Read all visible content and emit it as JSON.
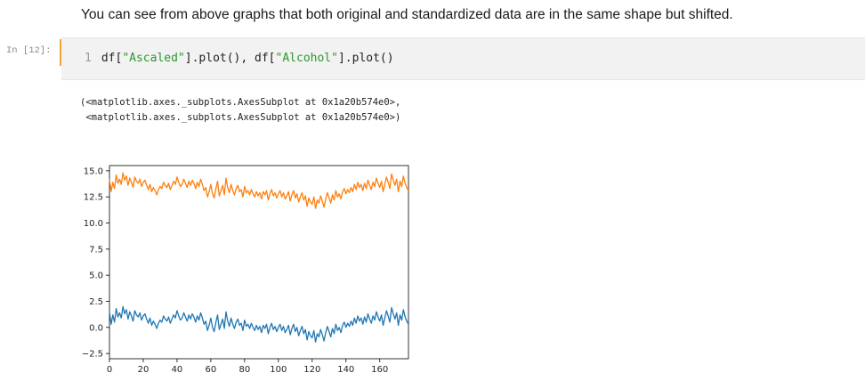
{
  "markdown": {
    "text": "You can see from above graphs that both original and standardized data are in the same shape but shifted."
  },
  "cell": {
    "prompt": "In [12]:",
    "line_number": "1",
    "code_parts": [
      "df[",
      "\"Ascaled\"",
      "].plot(), df[",
      "\"Alcohol\"",
      "].plot()"
    ]
  },
  "output": {
    "lines": [
      "(<matplotlib.axes._subplots.AxesSubplot at 0x1a20b574e0>,",
      " <matplotlib.axes._subplots.AxesSubplot at 0x1a20b574e0>)"
    ]
  },
  "colors": {
    "series_ascaled": "#1f77b4",
    "series_alcohol": "#ff7f0e",
    "cell_bar": "#f2a33a"
  },
  "chart_data": {
    "type": "line",
    "title": "",
    "xlabel": "",
    "ylabel": "",
    "xlim": [
      0,
      177
    ],
    "ylim": [
      -3.0,
      15.5
    ],
    "xticks": [
      0,
      20,
      40,
      60,
      80,
      100,
      120,
      140,
      160
    ],
    "yticks": [
      -2.5,
      0.0,
      2.5,
      5.0,
      7.5,
      10.0,
      12.5,
      15.0
    ],
    "ytick_labels": [
      "−2.5",
      "0.0",
      "2.5",
      "5.0",
      "7.5",
      "10.0",
      "12.5",
      "15.0"
    ],
    "grid": false,
    "legend": "none",
    "series": [
      {
        "values": [
          1.5,
          0.3,
          1.2,
          0.5,
          1.8,
          1.0,
          1.4,
          0.9,
          2.0,
          1.3,
          1.7,
          0.8,
          1.5,
          1.1,
          0.6,
          1.6,
          1.2,
          1.0,
          1.4,
          0.7,
          1.1,
          1.3,
          0.8,
          0.4,
          0.9,
          0.2,
          0.6,
          0.3,
          -0.1,
          0.4,
          0.7,
          0.5,
          1.1,
          0.8,
          0.6,
          1.0,
          0.4,
          0.8,
          1.2,
          0.9,
          1.6,
          1.1,
          0.7,
          0.9,
          1.4,
          1.0,
          0.6,
          1.2,
          0.8,
          1.3,
          1.0,
          0.5,
          1.1,
          0.7,
          1.4,
          0.9,
          0.3,
          0.6,
          -0.3,
          0.2,
          0.9,
          0.0,
          -0.4,
          0.5,
          1.2,
          -0.2,
          0.3,
          0.8,
          -0.1,
          1.5,
          0.6,
          0.1,
          0.9,
          0.3,
          -0.1,
          0.5,
          0.8,
          0.2,
          0.4,
          -0.3,
          0.7,
          0.1,
          0.3,
          -0.1,
          0.4,
          0.0,
          -0.3,
          0.2,
          -0.2,
          0.1,
          -0.5,
          0.2,
          -0.1,
          0.3,
          -0.6,
          0.0,
          0.4,
          -0.2,
          0.1,
          -0.4,
          0.0,
          0.3,
          -0.3,
          0.1,
          -0.5,
          -0.2,
          0.2,
          -0.7,
          -0.1,
          0.3,
          -0.4,
          0.0,
          -0.8,
          -0.3,
          0.1,
          -0.6,
          -0.2,
          -1.2,
          -0.4,
          -0.8,
          -1.0,
          -0.3,
          -1.4,
          -0.6,
          -0.9,
          -0.2,
          -0.7,
          -1.3,
          -0.5,
          0.1,
          -0.4,
          -0.9,
          -0.1,
          -0.6,
          0.3,
          -0.3,
          0.0,
          -0.5,
          0.2,
          0.5,
          0.0,
          0.4,
          0.1,
          0.6,
          0.2,
          0.9,
          0.4,
          1.1,
          0.6,
          0.9,
          0.3,
          1.0,
          0.5,
          1.3,
          0.8,
          0.4,
          1.1,
          0.7,
          1.5,
          1.0,
          0.6,
          1.2,
          0.2,
          0.9,
          1.6,
          1.1,
          0.5,
          1.9,
          1.3,
          0.8,
          1.4,
          0.2,
          1.2,
          0.7,
          1.7,
          1.0,
          0.6,
          0.3
        ]
      },
      {
        "values": [
          14.2,
          13.0,
          13.9,
          13.3,
          14.6,
          13.8,
          14.2,
          13.7,
          14.8,
          14.1,
          14.5,
          13.6,
          14.3,
          13.9,
          13.4,
          14.4,
          14.0,
          13.8,
          14.2,
          13.5,
          13.9,
          14.1,
          13.6,
          13.2,
          13.7,
          13.0,
          13.4,
          13.1,
          12.7,
          13.2,
          13.5,
          13.3,
          13.9,
          13.6,
          13.4,
          13.8,
          13.2,
          13.6,
          14.0,
          13.7,
          14.4,
          13.9,
          13.5,
          13.7,
          14.2,
          13.8,
          13.4,
          14.0,
          13.6,
          14.1,
          13.8,
          13.3,
          13.9,
          13.5,
          14.2,
          13.7,
          13.1,
          13.4,
          12.5,
          13.0,
          13.7,
          12.8,
          12.4,
          13.3,
          14.0,
          12.6,
          13.1,
          13.6,
          12.7,
          14.3,
          13.4,
          12.9,
          13.7,
          13.1,
          12.7,
          13.3,
          13.6,
          13.0,
          13.2,
          12.5,
          13.5,
          12.9,
          13.1,
          12.7,
          13.2,
          12.8,
          12.5,
          13.0,
          12.6,
          12.9,
          12.3,
          13.0,
          12.7,
          13.1,
          12.2,
          12.8,
          13.2,
          12.6,
          12.9,
          12.4,
          12.8,
          13.1,
          12.5,
          12.9,
          12.3,
          12.6,
          13.0,
          12.1,
          12.7,
          13.1,
          12.4,
          12.8,
          12.0,
          12.5,
          12.9,
          12.2,
          12.6,
          11.6,
          12.4,
          12.0,
          11.8,
          12.5,
          11.4,
          12.2,
          11.9,
          12.6,
          12.1,
          11.5,
          12.3,
          12.9,
          12.4,
          11.9,
          12.7,
          12.2,
          13.1,
          12.5,
          12.8,
          12.3,
          13.0,
          13.3,
          12.8,
          13.2,
          12.9,
          13.4,
          13.0,
          13.7,
          13.2,
          13.9,
          13.4,
          13.7,
          13.1,
          13.8,
          13.3,
          14.1,
          13.6,
          13.2,
          13.9,
          13.5,
          14.3,
          13.8,
          13.4,
          14.0,
          13.0,
          13.7,
          14.4,
          13.9,
          13.3,
          14.7,
          14.1,
          13.6,
          14.2,
          13.0,
          14.0,
          13.5,
          14.5,
          13.8,
          13.4,
          13.1
        ]
      }
    ]
  }
}
